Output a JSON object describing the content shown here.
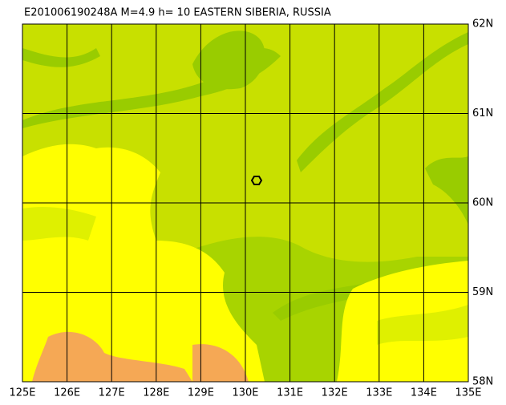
{
  "header": {
    "title": "E201006190248A M=4.9 h= 10 EASTERN SIBERIA, RUSSIA"
  },
  "map": {
    "lon_labels": [
      "125E",
      "126E",
      "127E",
      "128E",
      "129E",
      "130E",
      "131E",
      "132E",
      "133E",
      "134E",
      "135E"
    ],
    "lat_labels": [
      "62N",
      "61N",
      "60N",
      "59N",
      "58N"
    ]
  }
}
